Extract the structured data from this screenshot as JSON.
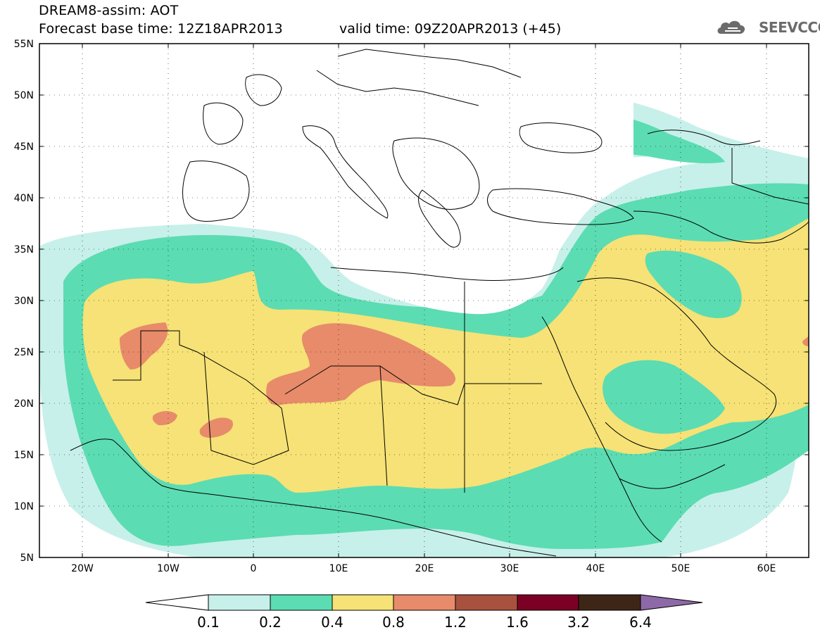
{
  "title": {
    "line1": "DREAM8-assim: AOT",
    "line2": "Forecast base time: 12Z18APR2013",
    "valid": "valid time: 09Z20APR2013 (+45)"
  },
  "logo": {
    "text": "SEEVCCC",
    "icon": "cloud-logo-icon",
    "color": "#6b6b6b"
  },
  "map": {
    "lon_range": [
      -25,
      65
    ],
    "lat_range": [
      5,
      55
    ],
    "lon_ticks": [
      "20W",
      "10W",
      "0",
      "10E",
      "20E",
      "30E",
      "40E",
      "50E",
      "60E"
    ],
    "lat_ticks": [
      "5N",
      "10N",
      "15N",
      "20N",
      "25N",
      "30N",
      "35N",
      "40N",
      "45N",
      "50N",
      "55N"
    ]
  },
  "colorbar": {
    "labels": [
      "0.1",
      "0.2",
      "0.4",
      "0.8",
      "1.2",
      "1.6",
      "3.2",
      "6.4"
    ],
    "colors": [
      "#ffffff",
      "#c7f0ea",
      "#5cdcb2",
      "#f6e276",
      "#e78b6a",
      "#a8513f",
      "#7c0025",
      "#3e2616",
      "#8e69a7"
    ]
  },
  "legend_colors": {
    "level_0_1": "#c7f0ea",
    "level_0_2": "#5cdcb2",
    "level_0_4": "#f6e276",
    "level_0_8": "#e78b6a"
  }
}
